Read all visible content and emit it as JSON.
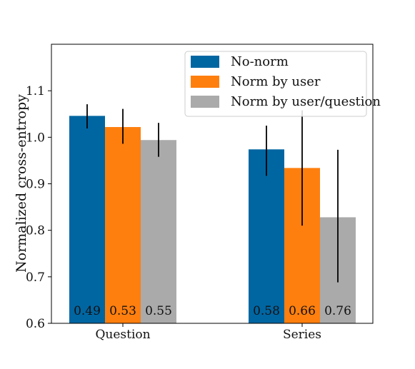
{
  "chart_data": {
    "type": "bar",
    "categories": [
      "Question",
      "Series"
    ],
    "series": [
      {
        "name": "No-norm",
        "color": "#0066a2",
        "values": [
          1.046,
          0.974
        ],
        "err_low": [
          1.019,
          0.917
        ],
        "err_high": [
          1.071,
          1.025
        ],
        "labels": [
          "0.49",
          "0.58"
        ]
      },
      {
        "name": "Norm by user",
        "color": "#ff7f0e",
        "values": [
          1.022,
          0.934
        ],
        "err_low": [
          0.986,
          0.81
        ],
        "err_high": [
          1.061,
          1.058
        ],
        "labels": [
          "0.53",
          "0.66"
        ]
      },
      {
        "name": "Norm by user/question",
        "color": "#aaaaaa",
        "values": [
          0.994,
          0.828
        ],
        "err_low": [
          0.958,
          0.688
        ],
        "err_high": [
          1.031,
          0.973
        ],
        "labels": [
          "0.55",
          "0.76"
        ]
      }
    ],
    "ylabel": "Normalized cross-entropy",
    "xlabel": "",
    "ylim": [
      0.6,
      1.2
    ],
    "yticks": [
      "0.6",
      "0.7",
      "0.8",
      "0.9",
      "1.0",
      "1.1"
    ],
    "grid": false,
    "legend_position": "top-right"
  }
}
